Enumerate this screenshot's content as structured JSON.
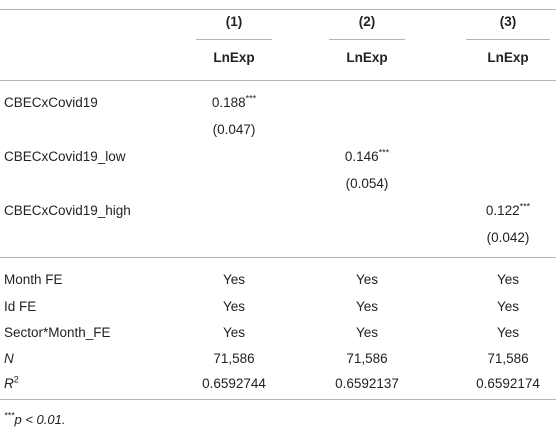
{
  "table": {
    "columns": [
      {
        "number": "(1)",
        "depvar": "LnExp"
      },
      {
        "number": "(2)",
        "depvar": "LnExp"
      },
      {
        "number": "(3)",
        "depvar": "LnExp"
      }
    ],
    "coef_rows": [
      {
        "label": "CBECxCovid19",
        "coef": "0.188",
        "stars": "***",
        "se": "(0.047)",
        "col": 0
      },
      {
        "label": "CBECxCovid19_low",
        "coef": "0.146",
        "stars": "***",
        "se": "(0.054)",
        "col": 1
      },
      {
        "label": "CBECxCovid19_high",
        "coef": "0.122",
        "stars": "***",
        "se": "(0.042)",
        "col": 2
      }
    ],
    "stat_rows": [
      {
        "label": "Month FE",
        "values": [
          "Yes",
          "Yes",
          "Yes"
        ]
      },
      {
        "label": "Id FE",
        "values": [
          "Yes",
          "Yes",
          "Yes"
        ]
      },
      {
        "label": "Sector*Month_FE",
        "values": [
          "Yes",
          "Yes",
          "Yes"
        ]
      },
      {
        "label": "N",
        "values": [
          "71,586",
          "71,586",
          "71,586"
        ]
      },
      {
        "label": "R",
        "label_sup": "2",
        "values": [
          "0.6592744",
          "0.6592137",
          "0.6592174"
        ]
      }
    ],
    "footnote": {
      "stars": "***",
      "text": "p < 0.01."
    }
  }
}
